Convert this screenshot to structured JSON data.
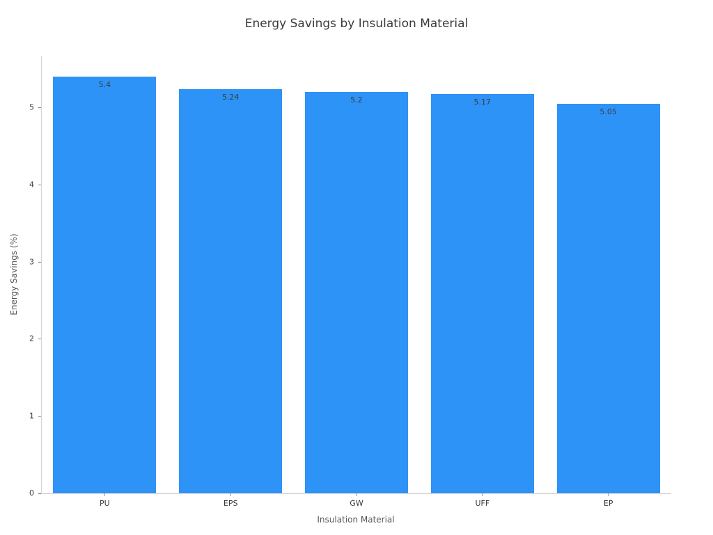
{
  "chart_data": {
    "type": "bar",
    "title": "Energy Savings by Insulation Material",
    "xlabel": "Insulation Material",
    "ylabel": "Energy Savings (%)",
    "categories": [
      "PU",
      "EPS",
      "GW",
      "UFF",
      "EP"
    ],
    "values": [
      5.4,
      5.24,
      5.2,
      5.17,
      5.05
    ],
    "value_labels": [
      "5.4",
      "5.24",
      "5.2",
      "5.17",
      "5.05"
    ],
    "yticks": [
      "0",
      "1",
      "2",
      "3",
      "4",
      "5"
    ],
    "ytick_values": [
      0,
      1,
      2,
      3,
      4,
      5
    ],
    "ylim": [
      0,
      5.67
    ],
    "grid": false,
    "legend": "none",
    "bar_value_label_position": "inside-top"
  },
  "colors": {
    "bar": "#2e93f7",
    "axis_line": "#d4d4d4",
    "tick_label": "#3a3a3a",
    "axis_label": "#595959",
    "title": "#3a3a3a",
    "value_label": "#3b3b3b",
    "background": "#ffffff"
  }
}
